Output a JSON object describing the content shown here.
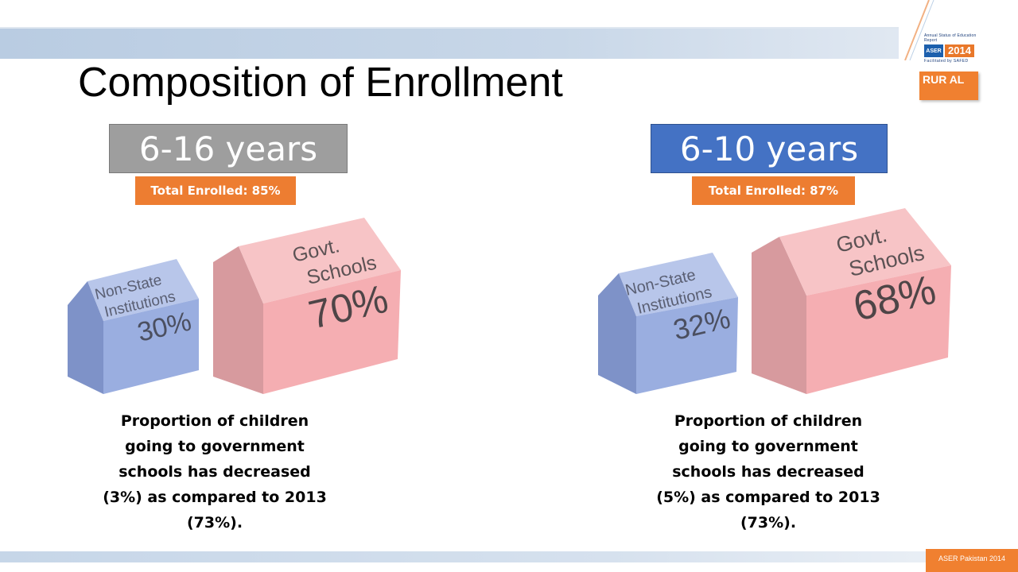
{
  "title": "Composition of Enrollment",
  "rural_badge": "RUR AL",
  "logo": {
    "top_text": "Annual Status of Education Report",
    "aser": "ASER",
    "year": "2014",
    "sub_text": "Facilitated by SAFED"
  },
  "panels": [
    {
      "age_label": "6-16 years",
      "total_enrolled": "Total Enrolled: 85%",
      "non_state_label": [
        "Non-State",
        "Institutions"
      ],
      "non_state_value": "30%",
      "govt_label": [
        "Govt.",
        "Schools"
      ],
      "govt_value": "70%",
      "caption": "Proportion of children going to government schools has decreased (3%) as compared to 2013 (73%)."
    },
    {
      "age_label": "6-10 years",
      "total_enrolled": "Total Enrolled: 87%",
      "non_state_label": [
        "Non-State",
        "Institutions"
      ],
      "non_state_value": "32%",
      "govt_label": [
        "Govt.",
        "Schools"
      ],
      "govt_value": "68%",
      "caption": "Proportion of children going to government schools has decreased (5%) as compared to 2013 (73%)."
    }
  ],
  "footer": "ASER Pakistan 2014",
  "colors": {
    "age_left": "#9e9e9e",
    "age_right": "#4472c4",
    "accent_orange": "#ed7d31",
    "house_blue": "#9aaee0",
    "house_pink": "#f5aeb2"
  }
}
